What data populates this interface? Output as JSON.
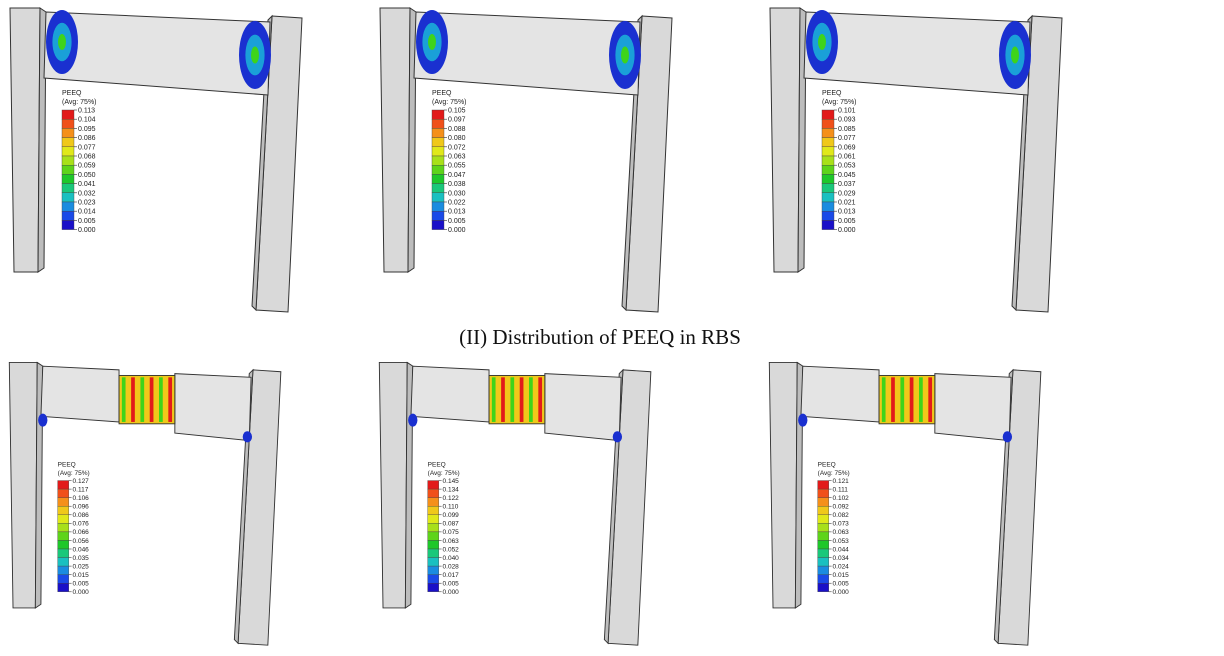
{
  "caption": "(II) Distribution of PEEQ in RBS",
  "panels": [
    {
      "legend": {
        "title": "PEEQ",
        "subtitle": "(Avg: 75%)",
        "ticks": [
          "0.113",
          "0.104",
          "0.095",
          "0.086",
          "0.077",
          "0.068",
          "0.059",
          "0.050",
          "0.041",
          "0.032",
          "0.023",
          "0.014",
          "0.005",
          "0.000"
        ]
      }
    },
    {
      "legend": {
        "title": "PEEQ",
        "subtitle": "(Avg: 75%)",
        "ticks": [
          "0.105",
          "0.097",
          "0.088",
          "0.080",
          "0.072",
          "0.063",
          "0.055",
          "0.047",
          "0.038",
          "0.030",
          "0.022",
          "0.013",
          "0.005",
          "0.000"
        ]
      }
    },
    {
      "legend": {
        "title": "PEEQ",
        "subtitle": "(Avg: 75%)",
        "ticks": [
          "0.101",
          "0.093",
          "0.085",
          "0.077",
          "0.069",
          "0.061",
          "0.053",
          "0.045",
          "0.037",
          "0.029",
          "0.021",
          "0.013",
          "0.005",
          "0.000"
        ]
      }
    },
    {
      "legend": {
        "title": "PEEQ",
        "subtitle": "(Avg: 75%)",
        "ticks": [
          "0.127",
          "0.117",
          "0.106",
          "0.096",
          "0.086",
          "0.076",
          "0.066",
          "0.056",
          "0.046",
          "0.035",
          "0.025",
          "0.015",
          "0.005",
          "0.000"
        ]
      }
    },
    {
      "legend": {
        "title": "PEEQ",
        "subtitle": "(Avg: 75%)",
        "ticks": [
          "0.145",
          "0.134",
          "0.122",
          "0.110",
          "0.099",
          "0.087",
          "0.075",
          "0.063",
          "0.052",
          "0.040",
          "0.028",
          "0.017",
          "0.005",
          "0.000"
        ]
      }
    },
    {
      "legend": {
        "title": "PEEQ",
        "subtitle": "(Avg: 75%)",
        "ticks": [
          "0.121",
          "0.111",
          "0.102",
          "0.092",
          "0.082",
          "0.073",
          "0.063",
          "0.053",
          "0.044",
          "0.034",
          "0.024",
          "0.015",
          "0.005",
          "0.000"
        ]
      }
    }
  ]
}
